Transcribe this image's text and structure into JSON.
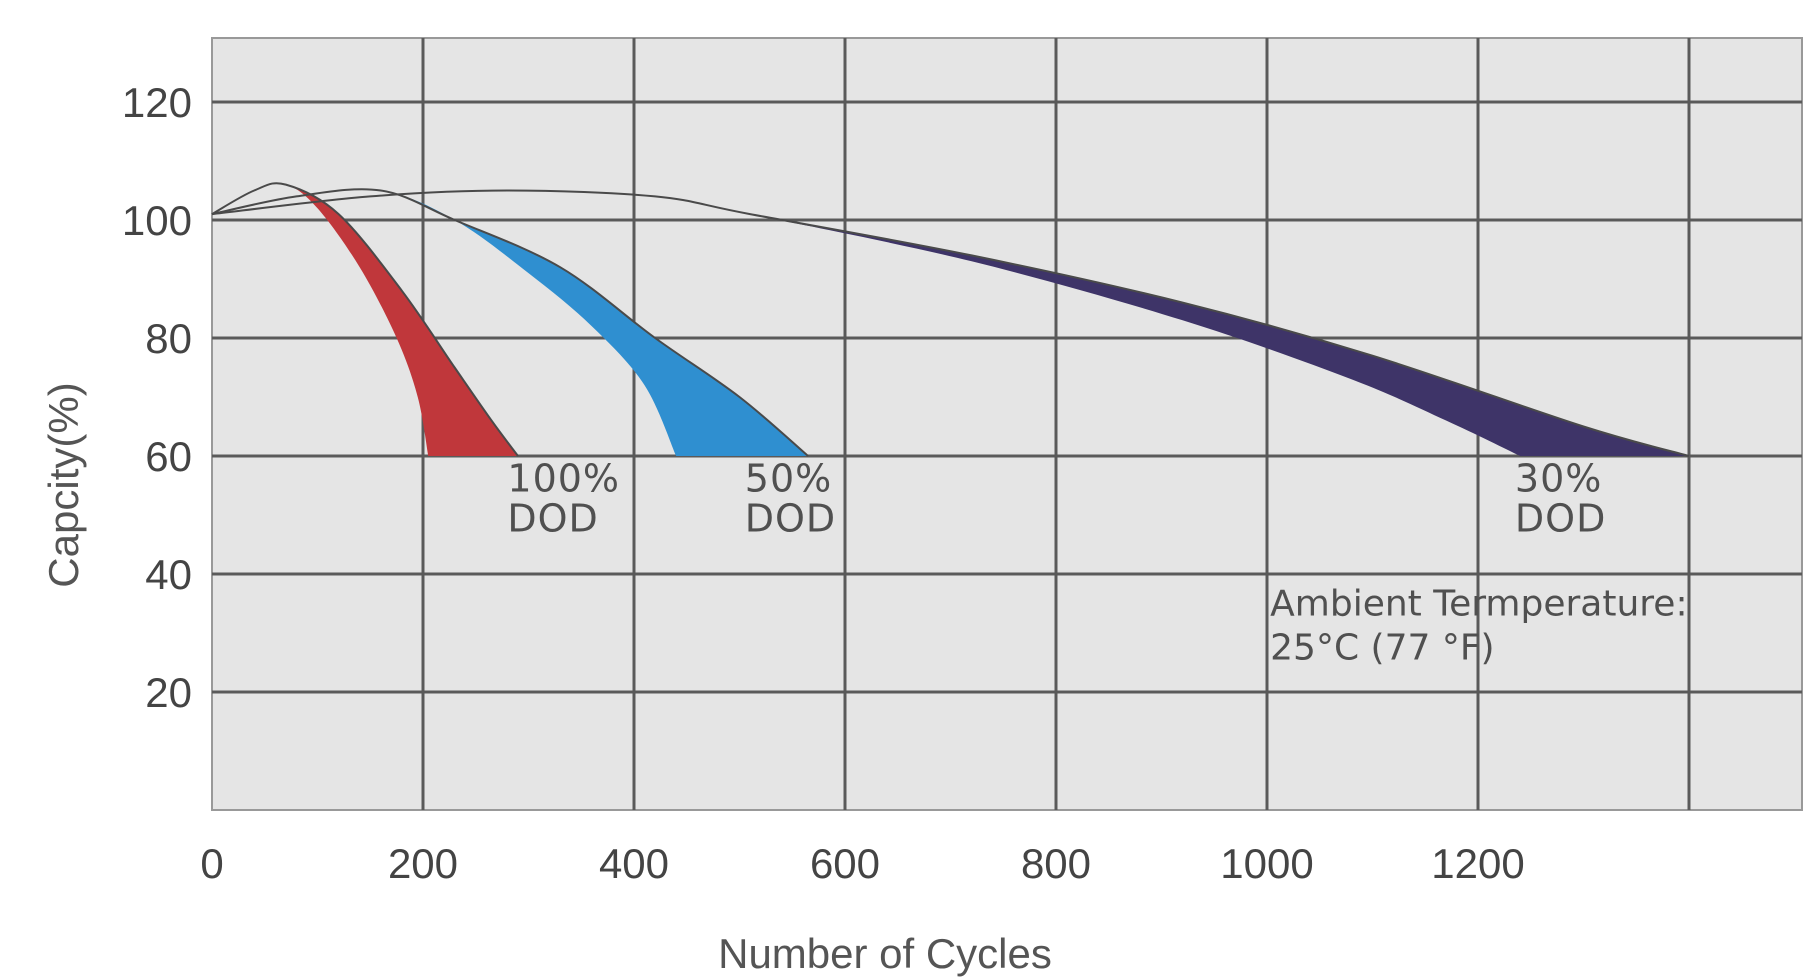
{
  "chart_data": {
    "type": "area",
    "title": "",
    "xlabel": "Number of Cycles",
    "ylabel": "Capcity(%)",
    "xlim": [
      0,
      1500
    ],
    "ylim": [
      0,
      130
    ],
    "x_ticks": [
      0,
      200,
      400,
      600,
      800,
      1000,
      1200
    ],
    "y_ticks": [
      20,
      40,
      60,
      80,
      100,
      120
    ],
    "x_gridlines": [
      200,
      400,
      600,
      800,
      1000,
      1200,
      1400
    ],
    "grid": true,
    "series": [
      {
        "name": "100% DOD",
        "label_lines": [
          "100%",
          "DOD"
        ],
        "color": "#c0373b",
        "upper": {
          "x": [
            0,
            40,
            70,
            120,
            180,
            230,
            265,
            290
          ],
          "y": [
            101,
            105,
            106,
            101,
            88,
            75,
            66,
            60
          ]
        },
        "lower": {
          "x": [
            0,
            40,
            70,
            100,
            140,
            175,
            195,
            205
          ],
          "y": [
            101,
            105,
            106,
            102,
            92,
            80,
            70,
            60
          ]
        },
        "label_at": {
          "x": 280,
          "y": 54
        }
      },
      {
        "name": "50% DOD",
        "label_lines": [
          "50%",
          "DOD"
        ],
        "color": "#2f8fd0",
        "upper": {
          "x": [
            0,
            80,
            160,
            230,
            330,
            420,
            500,
            565
          ],
          "y": [
            101,
            104,
            105,
            100,
            92,
            80,
            70,
            60
          ]
        },
        "lower": {
          "x": [
            0,
            80,
            160,
            230,
            300,
            360,
            410,
            440
          ],
          "y": [
            101,
            104,
            105,
            100,
            91,
            82,
            72,
            60
          ]
        },
        "label_at": {
          "x": 505,
          "y": 54
        }
      },
      {
        "name": "30% DOD",
        "label_lines": [
          "30%",
          "DOD"
        ],
        "color": "#3e3468",
        "upper": {
          "x": [
            0,
            150,
            280,
            420,
            510,
            720,
            920,
            1100,
            1300,
            1400
          ],
          "y": [
            101,
            104,
            105,
            104,
            101,
            94,
            86,
            77,
            65,
            60
          ]
        },
        "lower": {
          "x": [
            0,
            150,
            280,
            420,
            510,
            720,
            920,
            1080,
            1170,
            1240
          ],
          "y": [
            101,
            104,
            105,
            104,
            101,
            93,
            83,
            73,
            66,
            60
          ]
        },
        "label_at": {
          "x": 1235,
          "y": 54
        }
      }
    ],
    "annotation": {
      "lines": [
        "Ambient Termperature:",
        "25°C (77 °F)"
      ],
      "at": {
        "x": 1003,
        "y": 33
      }
    }
  }
}
